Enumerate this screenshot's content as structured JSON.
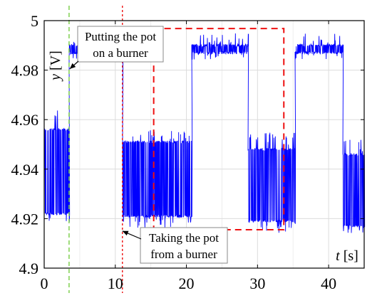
{
  "chart_data": {
    "type": "line",
    "title": "",
    "xlabel": {
      "var": "t",
      "unit": " [s]"
    },
    "ylabel": {
      "var": "y",
      "unit": " [V]"
    },
    "xlim": [
      0,
      45
    ],
    "ylim": [
      4.9,
      5.0
    ],
    "x_ticks": [
      0,
      10,
      20,
      30,
      40
    ],
    "y_ticks": [
      4.9,
      4.92,
      4.94,
      4.96,
      4.98,
      5.0
    ],
    "x_tick_labels": [
      "0",
      "10",
      "20",
      "30",
      "40"
    ],
    "y_tick_labels": [
      "4.9",
      "4.92",
      "4.94",
      "4.96",
      "4.98",
      "5"
    ],
    "grid": true,
    "series": [
      {
        "color": "#0000ff",
        "segments": [
          {
            "x_start": 0.0,
            "x_end": 3.5,
            "low": 4.922,
            "high": 4.956,
            "spike_low": 4.918,
            "spike_high": 4.966
          },
          {
            "x_start": 3.5,
            "x_end": 11.0,
            "low": 4.987,
            "high": 4.99,
            "spike_low": 4.984,
            "spike_high": 4.995
          },
          {
            "x_start": 11.0,
            "x_end": 20.7,
            "low": 4.921,
            "high": 4.951,
            "spike_low": 4.916,
            "spike_high": 4.956
          },
          {
            "x_start": 20.7,
            "x_end": 28.7,
            "low": 4.987,
            "high": 4.99,
            "spike_low": 4.984,
            "spike_high": 4.995
          },
          {
            "x_start": 28.7,
            "x_end": 35.3,
            "low": 4.919,
            "high": 4.948,
            "spike_low": 4.914,
            "spike_high": 4.955
          },
          {
            "x_start": 35.3,
            "x_end": 42.0,
            "low": 4.987,
            "high": 4.99,
            "spike_low": 4.984,
            "spike_high": 4.995
          },
          {
            "x_start": 42.0,
            "x_end": 45.0,
            "low": 4.917,
            "high": 4.946,
            "spike_low": 4.914,
            "spike_high": 4.952
          }
        ]
      }
    ],
    "vertical_lines": [
      {
        "x": 3.5,
        "color": "#77cc44",
        "style": "dashed"
      },
      {
        "x": 11.0,
        "color": "#ee1111",
        "style": "dotted"
      }
    ],
    "highlight_box": {
      "x0": 15.4,
      "x1": 33.7,
      "y0": 4.9155,
      "y1": 4.9968,
      "color": "#ee1111",
      "style": "dashed"
    },
    "annotations": [
      {
        "lines": [
          "Putting the pot",
          "on a burner"
        ],
        "arrow_to": {
          "x": 3.6,
          "y": 4.9805
        }
      },
      {
        "lines": [
          "Taking the pot",
          "from a burner"
        ],
        "arrow_to": {
          "x": 11.0,
          "y": 4.915
        }
      }
    ]
  }
}
